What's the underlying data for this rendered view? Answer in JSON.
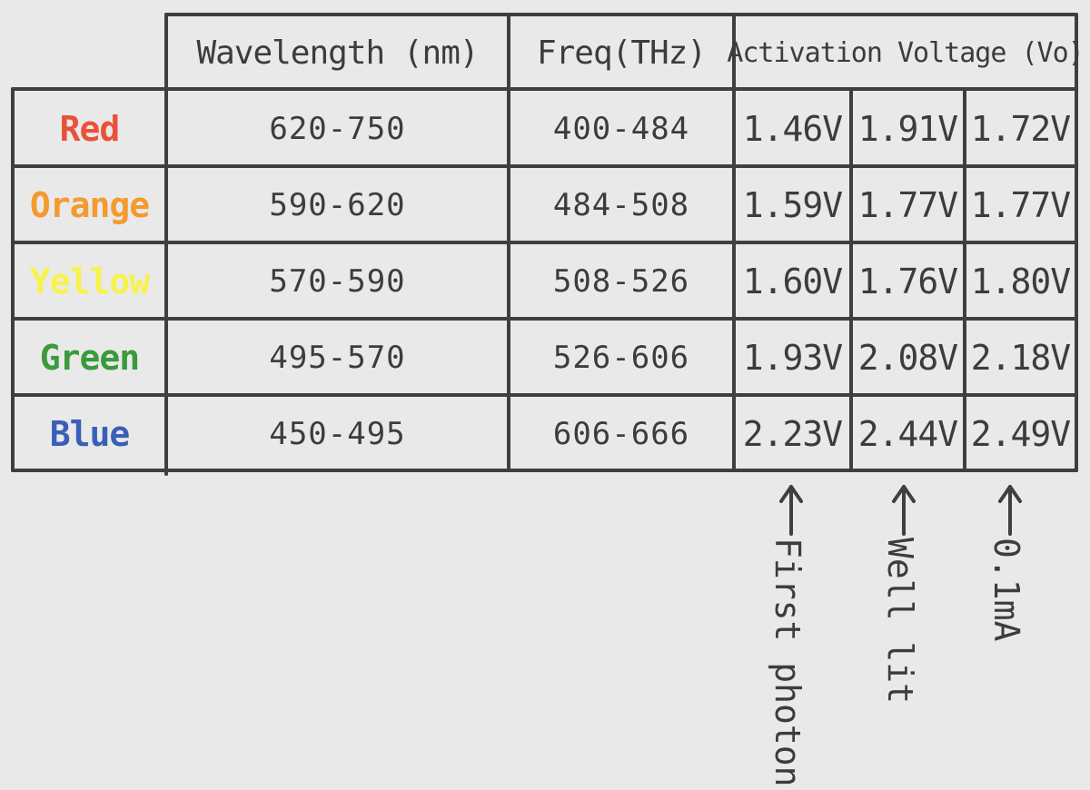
{
  "table": {
    "headers": {
      "wavelength": "Wavelength (nm)",
      "freq": "Freq(THz)",
      "activation": "Activation Voltage (Vo)"
    },
    "rows": [
      {
        "color_name": "Red",
        "color_hex": "#e8523a",
        "wavelength": "620-750",
        "freq": "400-484",
        "v1": "1.46V",
        "v2": "1.91V",
        "v3": "1.72V"
      },
      {
        "color_name": "Orange",
        "color_hex": "#f59a2e",
        "wavelength": "590-620",
        "freq": "484-508",
        "v1": "1.59V",
        "v2": "1.77V",
        "v3": "1.77V"
      },
      {
        "color_name": "Yellow",
        "color_hex": "#f7f34a",
        "wavelength": "570-590",
        "freq": "508-526",
        "v1": "1.60V",
        "v2": "1.76V",
        "v3": "1.80V"
      },
      {
        "color_name": "Green",
        "color_hex": "#3a9a3c",
        "wavelength": "495-570",
        "freq": "526-606",
        "v1": "1.93V",
        "v2": "2.08V",
        "v3": "2.18V"
      },
      {
        "color_name": "Blue",
        "color_hex": "#3a5fb8",
        "wavelength": "450-495",
        "freq": "606-666",
        "v1": "2.23V",
        "v2": "2.44V",
        "v3": "2.49V"
      }
    ]
  },
  "annotations": {
    "first_photons": "First photons",
    "well_lit": "Well lit",
    "current": "0.1mA"
  },
  "ink_color": "#3f3f3f",
  "background": "#e9e9e9"
}
